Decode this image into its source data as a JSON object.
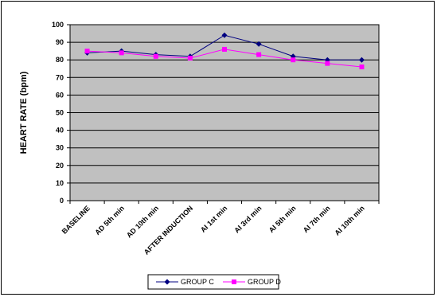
{
  "chart_data": {
    "type": "line",
    "title": "",
    "xlabel": "",
    "ylabel": "HEART  RATE (bpm)",
    "ylim": [
      0,
      100
    ],
    "yticks": [
      0,
      10,
      20,
      30,
      40,
      50,
      60,
      70,
      80,
      90,
      100
    ],
    "grid": true,
    "legend_position": "bottom",
    "plot_background": "#c0c0c0",
    "categories": [
      "BASELINE",
      "AD 5th min",
      "AD 10th min",
      "AFTER INDUCTION",
      "AI 1st min",
      "AI 3rd min",
      "AI 5th min",
      "AI 7th min",
      "AI 10th min"
    ],
    "series": [
      {
        "name": "GROUP C",
        "color": "#000080",
        "marker": "diamond",
        "values": [
          84,
          85,
          83,
          82,
          94,
          89,
          82,
          80,
          80
        ]
      },
      {
        "name": "GROUP D",
        "color": "#ff00ff",
        "marker": "square",
        "values": [
          85,
          84,
          82,
          81,
          86,
          83,
          80,
          78,
          76
        ]
      }
    ]
  }
}
